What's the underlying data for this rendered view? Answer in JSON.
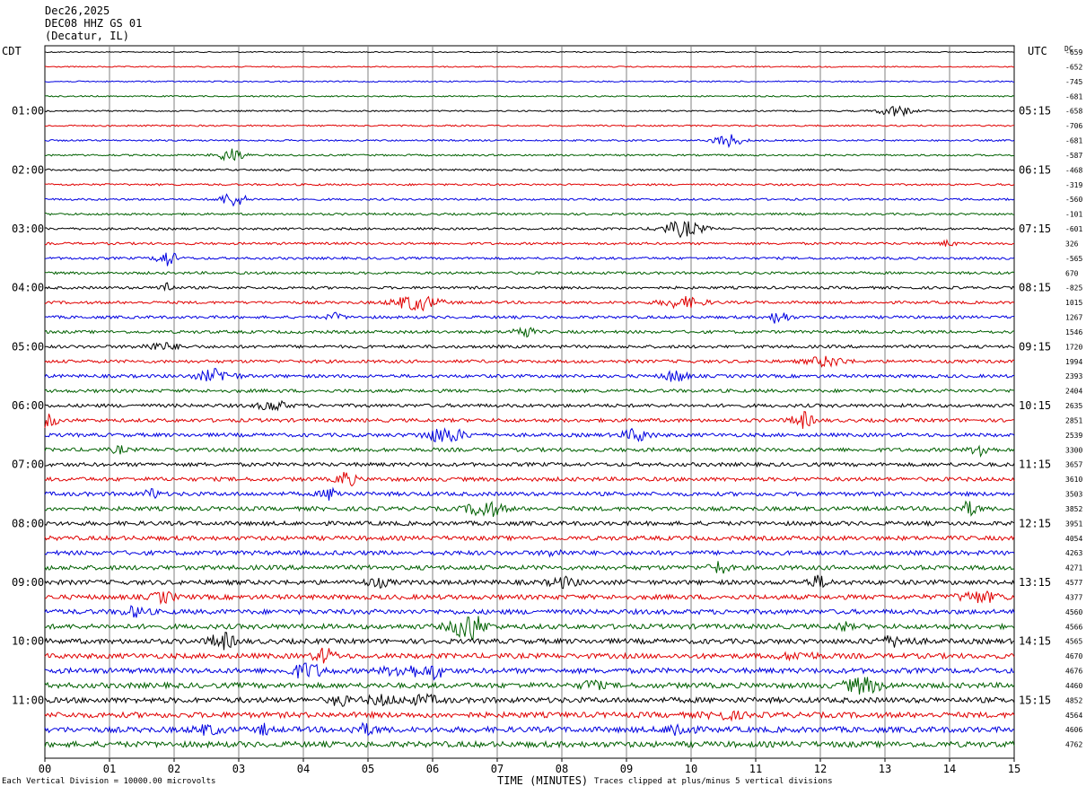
{
  "header": {
    "date": "Dec26,2025",
    "station": "DEC08 HHZ GS 01",
    "location": "(Decatur, IL)"
  },
  "left_timezone": "CDT",
  "right_timezone": "UTC",
  "dc_label": "DC",
  "footer": {
    "scale_note": "Each Vertical Division = 10000.00 microvolts",
    "clip_note": "Traces clipped at plus/minus 5 vertical divisions"
  },
  "colors": {
    "trace_cycle": [
      "#000000",
      "#e00000",
      "#0000e0",
      "#006000"
    ],
    "grid": "#808080",
    "frame": "#000000"
  },
  "chart_data": {
    "type": "line",
    "title": "DEC08 HHZ GS 01",
    "xlabel": "TIME (MINUTES)",
    "ylabel": "",
    "x_ticks": [
      "00",
      "01",
      "02",
      "03",
      "04",
      "05",
      "06",
      "07",
      "08",
      "09",
      "10",
      "11",
      "12",
      "13",
      "14",
      "15"
    ],
    "xlim": [
      0,
      15
    ],
    "left_hour_labels": [
      "01:00",
      "02:00",
      "03:00",
      "04:00",
      "05:00",
      "06:00",
      "07:00",
      "08:00",
      "09:00",
      "10:00",
      "11:00"
    ],
    "right_hour_labels": [
      "05:15",
      "06:15",
      "07:15",
      "08:15",
      "09:15",
      "10:15",
      "11:15",
      "12:15",
      "13:15",
      "14:15",
      "15:15"
    ],
    "dc_offsets": [
      -659,
      -652,
      -745,
      -681,
      -658,
      -706,
      -681,
      -587,
      -468,
      -319,
      -560,
      -101,
      -601,
      326,
      -565,
      670,
      -825,
      1015,
      1267,
      1546,
      1720,
      1994,
      2393,
      2404,
      2635,
      2851,
      2539,
      3300,
      3657,
      3610,
      3503,
      3852,
      3951,
      4054,
      4263,
      4271,
      4577,
      4377,
      4560,
      4566,
      4565,
      4670,
      4676,
      4460,
      4852,
      4564,
      4606,
      4762
    ],
    "trace_colors": [
      "black",
      "red",
      "blue",
      "green"
    ],
    "trace_count": 48,
    "minutes_per_trace": 15
  }
}
